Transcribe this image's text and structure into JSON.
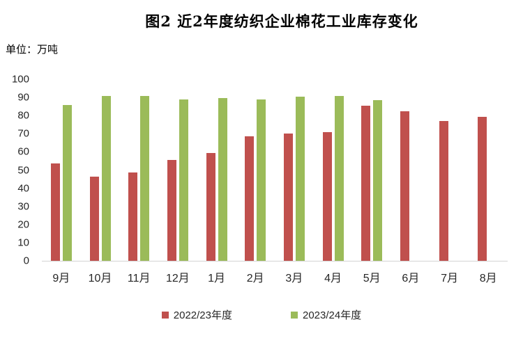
{
  "title": "图2 近2年度纺织企业棉花工业库存变化",
  "unit_label": "单位：万吨",
  "chart_data": {
    "type": "bar",
    "title": "图2 近2年度纺织企业棉花工业库存变化",
    "ylabel_unit": "单位：万吨",
    "categories": [
      "9月",
      "10月",
      "11月",
      "12月",
      "1月",
      "2月",
      "3月",
      "4月",
      "5月",
      "6月",
      "7月",
      "8月"
    ],
    "series": [
      {
        "name": "2022/23年度",
        "color": "#c0504d",
        "values": [
          53.5,
          46.5,
          48.5,
          55.5,
          59.5,
          68.5,
          70,
          71,
          85.5,
          82.5,
          77,
          79.5
        ]
      },
      {
        "name": "2023/24年度",
        "color": "#9bbb59",
        "values": [
          86,
          91,
          91,
          89,
          89.5,
          89,
          90.5,
          91,
          88.5,
          null,
          null,
          null
        ]
      }
    ],
    "ylim": [
      0,
      100
    ],
    "ytick_step": 10,
    "grid": false,
    "legend_position": "bottom",
    "axis_line_color": "#d3d3d3"
  }
}
